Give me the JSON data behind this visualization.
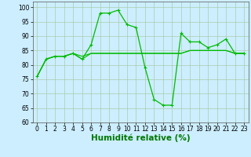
{
  "series1": {
    "x": [
      0,
      1,
      2,
      3,
      4,
      5,
      6,
      7,
      8,
      9,
      10,
      11,
      12,
      13,
      14,
      15,
      16,
      17,
      18,
      19,
      20,
      21,
      22,
      23
    ],
    "y": [
      76,
      82,
      83,
      83,
      84,
      82,
      87,
      98,
      98,
      99,
      94,
      93,
      79,
      68,
      66,
      66,
      91,
      88,
      88,
      86,
      87,
      89,
      84,
      84
    ]
  },
  "series2": {
    "x": [
      0,
      1,
      2,
      3,
      4,
      5,
      6,
      7,
      8,
      9,
      10,
      11,
      12,
      13,
      14,
      15,
      16,
      17,
      18,
      19,
      20,
      21,
      22,
      23
    ],
    "y": [
      76,
      82,
      83,
      83,
      84,
      82,
      84,
      84,
      84,
      84,
      84,
      84,
      84,
      84,
      84,
      84,
      84,
      85,
      85,
      85,
      85,
      85,
      84,
      84
    ]
  },
  "series3": {
    "x": [
      0,
      1,
      2,
      3,
      4,
      5,
      6,
      7,
      8,
      9,
      10,
      11,
      12,
      13,
      14,
      15,
      16,
      17,
      18,
      19,
      20,
      21,
      22,
      23
    ],
    "y": [
      76,
      82,
      83,
      83,
      84,
      83,
      84,
      84,
      84,
      84,
      84,
      84,
      84,
      84,
      84,
      84,
      84,
      85,
      85,
      85,
      85,
      85,
      84,
      84
    ]
  },
  "line_color": "#00bb00",
  "marker": "+",
  "bg_color": "#cceeff",
  "grid_color": "#aaccaa",
  "xlabel": "Humidité relative (%)",
  "xlabel_color": "#007700",
  "ylim": [
    60,
    102
  ],
  "xlim": [
    -0.5,
    23.5
  ],
  "yticks": [
    60,
    65,
    70,
    75,
    80,
    85,
    90,
    95,
    100
  ],
  "xticks": [
    0,
    1,
    2,
    3,
    4,
    5,
    6,
    7,
    8,
    9,
    10,
    11,
    12,
    13,
    14,
    15,
    16,
    17,
    18,
    19,
    20,
    21,
    22,
    23
  ],
  "tick_fontsize": 5.5,
  "xlabel_fontsize": 7.5
}
